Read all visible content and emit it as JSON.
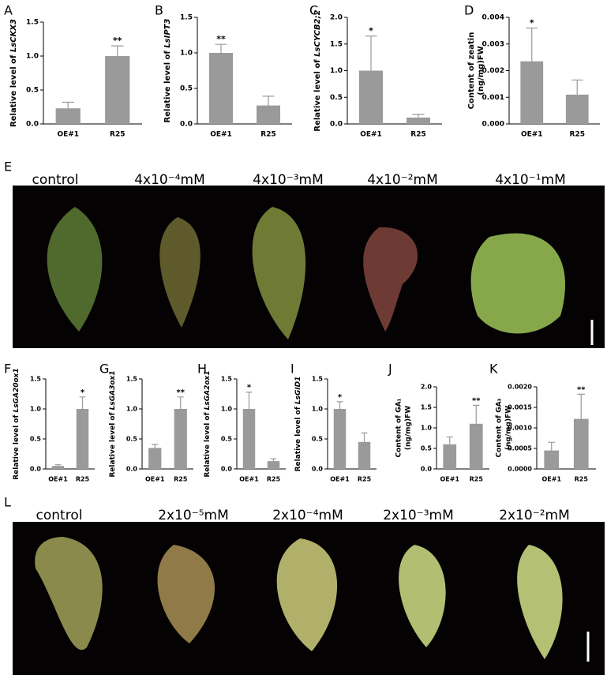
{
  "chart_data": [
    {
      "type": "bar",
      "panel": "A",
      "ylabel": "Relative level of ",
      "gene": "LsCKX3",
      "categories": [
        "OE#1",
        "R25"
      ],
      "values": [
        0.23,
        1.0
      ],
      "errors": [
        0.09,
        0.15
      ],
      "significance": [
        null,
        "**"
      ],
      "color": "#9a9a9a",
      "ylim": [
        0,
        1.5
      ],
      "yticks": [
        {
          "value": 0,
          "label": "0.0"
        },
        0.5,
        {
          "value": 1,
          "label": "1.0"
        },
        1.5
      ]
    },
    {
      "type": "bar",
      "panel": "B",
      "ylabel": "Relative level of ",
      "gene": "LsIPT3",
      "categories": [
        "OE#1",
        "R25"
      ],
      "values": [
        1.0,
        0.26
      ],
      "errors": [
        0.12,
        0.13
      ],
      "significance": [
        "**",
        null
      ],
      "color": "#9a9a9a",
      "ylim": [
        0,
        1.5
      ],
      "yticks": [
        {
          "value": 0,
          "label": "0.0"
        },
        0.5,
        {
          "value": 1,
          "label": "1.0"
        },
        1.5
      ]
    },
    {
      "type": "bar",
      "panel": "C",
      "ylabel": "Relative level of ",
      "gene": "LsCYCB2;2",
      "categories": [
        "OE#1",
        "R25"
      ],
      "values": [
        1.0,
        0.12
      ],
      "errors": [
        0.65,
        0.06
      ],
      "significance": [
        "*",
        null
      ],
      "color": "#9a9a9a",
      "ylim": [
        0,
        2
      ],
      "yticks": [
        {
          "value": 0,
          "label": "0.0"
        },
        0.5,
        {
          "value": 1,
          "label": "1.0"
        },
        1.5,
        {
          "value": 2,
          "label": "2.0"
        }
      ]
    },
    {
      "type": "bar",
      "panel": "D",
      "ylabel": [
        "Content of zeatin",
        "(ng/mg)FW"
      ],
      "categories": [
        "OE#1",
        "R25"
      ],
      "values": [
        0.00235,
        0.0011
      ],
      "errors": [
        0.00125,
        0.00055
      ],
      "significance": [
        "*",
        null
      ],
      "color": "#9a9a9a",
      "ylim": [
        0,
        0.004
      ],
      "yticks": [
        {
          "value": 0,
          "label": "0.000"
        },
        0.001,
        0.002,
        0.003,
        0.004
      ]
    },
    {
      "type": "bar",
      "panel": "F",
      "ylabel": "Relative level of ",
      "gene": "LsGA20ox1",
      "categories": [
        "OE#1",
        "R25"
      ],
      "values": [
        0.05,
        1.0
      ],
      "errors": [
        0.02,
        0.2
      ],
      "significance": [
        null,
        "*"
      ],
      "color": "#9a9a9a",
      "ylim": [
        0,
        1.5
      ],
      "yticks": [
        {
          "value": 0,
          "label": "0.0"
        },
        0.5,
        {
          "value": 1,
          "label": "1.0"
        },
        1.5
      ]
    },
    {
      "type": "bar",
      "panel": "G",
      "ylabel": "Relative level of ",
      "gene": "LsGA3ox1",
      "categories": [
        "OE#1",
        "R25"
      ],
      "values": [
        0.35,
        1.0
      ],
      "errors": [
        0.06,
        0.2
      ],
      "significance": [
        null,
        "**"
      ],
      "color": "#9a9a9a",
      "ylim": [
        0,
        1.5
      ],
      "yticks": [
        {
          "value": 0,
          "label": "0.0"
        },
        0.5,
        {
          "value": 1,
          "label": "1.0"
        },
        1.5
      ]
    },
    {
      "type": "bar",
      "panel": "H",
      "ylabel": "Relative level of ",
      "gene": "LsGA2ox1",
      "categories": [
        "OE#1",
        "R25"
      ],
      "values": [
        1.0,
        0.13
      ],
      "errors": [
        0.28,
        0.04
      ],
      "significance": [
        "*",
        null
      ],
      "color": "#9a9a9a",
      "ylim": [
        0,
        1.5
      ],
      "yticks": [
        {
          "value": 0,
          "label": "0.0"
        },
        0.5,
        {
          "value": 1,
          "label": "1.0"
        },
        1.5
      ]
    },
    {
      "type": "bar",
      "panel": "I",
      "ylabel": "Relative level of ",
      "gene": "LsGID1",
      "categories": [
        "OE#1",
        "R25"
      ],
      "values": [
        1.0,
        0.45
      ],
      "errors": [
        0.12,
        0.15
      ],
      "significance": [
        "*",
        null
      ],
      "color": "#9a9a9a",
      "ylim": [
        0,
        1.5
      ],
      "yticks": [
        {
          "value": 0,
          "label": "0.0"
        },
        0.5,
        {
          "value": 1,
          "label": "1.0"
        },
        1.5
      ]
    },
    {
      "type": "bar",
      "panel": "J",
      "ylabel": [
        "Content of GA₁",
        "(ng/mg)FW"
      ],
      "categories": [
        "OE#1",
        "R25"
      ],
      "values": [
        0.6,
        1.1
      ],
      "errors": [
        0.18,
        0.45
      ],
      "significance": [
        null,
        "**"
      ],
      "color": "#9a9a9a",
      "ylim": [
        0,
        2
      ],
      "yticks": [
        {
          "value": 0,
          "label": "0.0"
        },
        0.5,
        {
          "value": 1,
          "label": "1.0"
        },
        1.5,
        {
          "value": 2,
          "label": "2.0"
        }
      ]
    },
    {
      "type": "bar",
      "panel": "K",
      "ylabel": [
        "Content of GA₃",
        "(ng/mg)FW"
      ],
      "categories": [
        "OE#1",
        "R25"
      ],
      "values": [
        0.00045,
        0.00122
      ],
      "errors": [
        0.0002,
        0.0006
      ],
      "significance": [
        null,
        "**"
      ],
      "color": "#9a9a9a",
      "ylim": [
        0,
        0.002
      ],
      "yticks": [
        {
          "value": 0,
          "label": "0.0000"
        },
        0.0005,
        {
          "value": 0.001,
          "label": "0.0010"
        },
        0.0015,
        {
          "value": 0.002,
          "label": "0.0020"
        }
      ]
    }
  ],
  "photo_panels": [
    {
      "panel": "E",
      "labels": [
        "control",
        "4x10⁻⁴mM",
        "4x10⁻³mM",
        "4x10⁻²mM",
        "4x10⁻¹mM"
      ]
    },
    {
      "panel": "L",
      "labels": [
        "control",
        "2x10⁻⁵mM",
        "2x10⁻⁴mM",
        "2x10⁻³mM",
        "2x10⁻²mM"
      ]
    }
  ]
}
